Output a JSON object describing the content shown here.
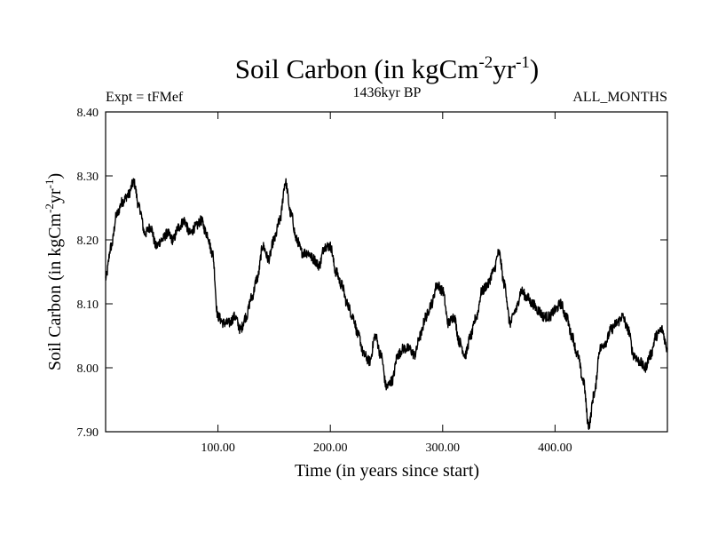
{
  "chart_data": {
    "type": "line",
    "title": {
      "main": "Soil Carbon (in kgCm",
      "sup1": "-2",
      "mid": "yr",
      "sup2": "-1",
      "end": ")"
    },
    "subtitle_left": "Expt = tFMef",
    "subtitle_center": "1436kyr BP",
    "subtitle_right": "ALL_MONTHS",
    "xlabel": "Time (in years since start)",
    "ylabel": {
      "main": "Soil Carbon (in kgCm",
      "sup1": "-2",
      "mid": "yr",
      "sup2": "-1",
      "end": ")"
    },
    "xlim": [
      0,
      500
    ],
    "ylim": [
      7.9,
      8.4
    ],
    "xticks": [
      100,
      200,
      300,
      400
    ],
    "xtick_labels": [
      "100.00",
      "200.00",
      "300.00",
      "400.00"
    ],
    "yticks": [
      7.9,
      8.0,
      8.1,
      8.2,
      8.3,
      8.4
    ],
    "ytick_labels": [
      "7.90",
      "8.00",
      "8.10",
      "8.20",
      "8.30",
      "8.40"
    ],
    "series": [
      {
        "name": "Soil Carbon",
        "color": "#000000",
        "noise_amplitude": 0.008,
        "x": [
          0,
          5,
          10,
          15,
          20,
          25,
          30,
          35,
          40,
          45,
          50,
          55,
          60,
          65,
          70,
          75,
          80,
          85,
          90,
          95,
          100,
          105,
          110,
          115,
          120,
          125,
          130,
          135,
          140,
          145,
          150,
          155,
          160,
          165,
          170,
          175,
          180,
          185,
          190,
          195,
          200,
          205,
          210,
          215,
          220,
          225,
          230,
          235,
          240,
          245,
          250,
          255,
          260,
          265,
          270,
          275,
          280,
          285,
          290,
          295,
          300,
          305,
          310,
          315,
          320,
          325,
          330,
          335,
          340,
          345,
          350,
          355,
          360,
          365,
          370,
          375,
          380,
          385,
          390,
          395,
          400,
          405,
          410,
          415,
          420,
          425,
          430,
          435,
          440,
          445,
          450,
          455,
          460,
          465,
          470,
          475,
          480,
          485,
          490,
          495,
          500
        ],
        "values": [
          8.14,
          8.19,
          8.24,
          8.26,
          8.27,
          8.29,
          8.25,
          8.21,
          8.22,
          8.19,
          8.2,
          8.21,
          8.2,
          8.22,
          8.23,
          8.21,
          8.22,
          8.23,
          8.21,
          8.18,
          8.08,
          8.07,
          8.07,
          8.08,
          8.06,
          8.08,
          8.11,
          8.14,
          8.19,
          8.17,
          8.2,
          8.23,
          8.29,
          8.24,
          8.2,
          8.18,
          8.18,
          8.17,
          8.16,
          8.19,
          8.19,
          8.15,
          8.13,
          8.1,
          8.08,
          8.05,
          8.02,
          8.01,
          8.05,
          8.02,
          7.97,
          7.98,
          8.02,
          8.03,
          8.03,
          8.02,
          8.05,
          8.08,
          8.1,
          8.13,
          8.12,
          8.07,
          8.08,
          8.04,
          8.02,
          8.05,
          8.08,
          8.12,
          8.13,
          8.15,
          8.18,
          8.13,
          8.07,
          8.09,
          8.12,
          8.11,
          8.1,
          8.09,
          8.08,
          8.08,
          8.09,
          8.1,
          8.08,
          8.05,
          8.02,
          7.98,
          7.91,
          7.96,
          8.03,
          8.04,
          8.06,
          8.07,
          8.08,
          8.06,
          8.02,
          8.01,
          8.0,
          8.02,
          8.05,
          8.06,
          8.03
        ]
      }
    ]
  }
}
